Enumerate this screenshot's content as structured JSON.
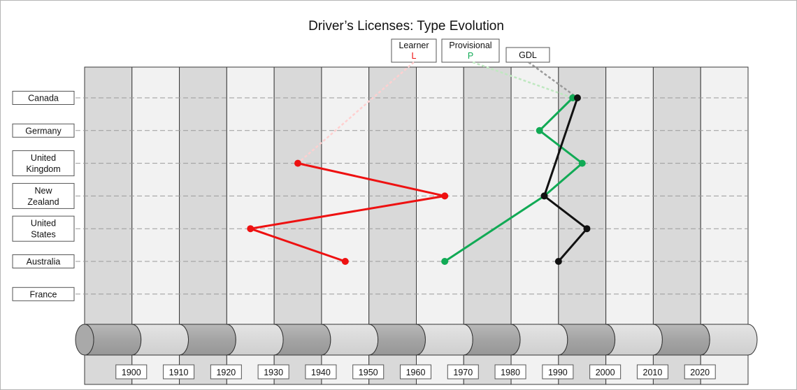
{
  "chart_data": {
    "type": "line",
    "title": "Driver’s Licenses: Type Evolution",
    "x_range": [
      1890,
      2030
    ],
    "x_ticks": [
      1900,
      1910,
      1920,
      1930,
      1940,
      1950,
      1960,
      1970,
      1980,
      1990,
      2000,
      2010,
      2020
    ],
    "categories": [
      {
        "name": "Canada",
        "lines": [
          "Canada"
        ]
      },
      {
        "name": "Germany",
        "lines": [
          "Germany"
        ]
      },
      {
        "name": "United Kingdom",
        "lines": [
          "United",
          "Kingdom"
        ]
      },
      {
        "name": "New Zealand",
        "lines": [
          "New",
          "Zealand"
        ]
      },
      {
        "name": "United States",
        "lines": [
          "United",
          "States"
        ]
      },
      {
        "name": "Australia",
        "lines": [
          "Australia"
        ]
      },
      {
        "name": "France",
        "lines": [
          "France"
        ]
      }
    ],
    "series": [
      {
        "name": "Learner",
        "symbol": "L",
        "color": "#ee1111",
        "legend_color": "#ffd0d0",
        "points": [
          {
            "country": "United Kingdom",
            "x": 1935
          },
          {
            "country": "New Zealand",
            "x": 1966
          },
          {
            "country": "United States",
            "x": 1925
          },
          {
            "country": "Australia",
            "x": 1945
          }
        ]
      },
      {
        "name": "Provisional",
        "symbol": "P",
        "color": "#11aa55",
        "legend_color": "#bfe8c0",
        "points": [
          {
            "country": "Canada",
            "x": 1993
          },
          {
            "country": "Germany",
            "x": 1986
          },
          {
            "country": "United Kingdom",
            "x": 1995
          },
          {
            "country": "New Zealand",
            "x": 1987
          },
          {
            "country": "Australia",
            "x": 1966
          }
        ]
      },
      {
        "name": "GDL",
        "symbol": "",
        "color": "#111111",
        "legend_color": "#999999",
        "points": [
          {
            "country": "Canada",
            "x": 1994
          },
          {
            "country": "New Zealand",
            "x": 1987
          },
          {
            "country": "United States",
            "x": 1996
          },
          {
            "country": "Australia",
            "x": 1990
          }
        ]
      }
    ]
  }
}
